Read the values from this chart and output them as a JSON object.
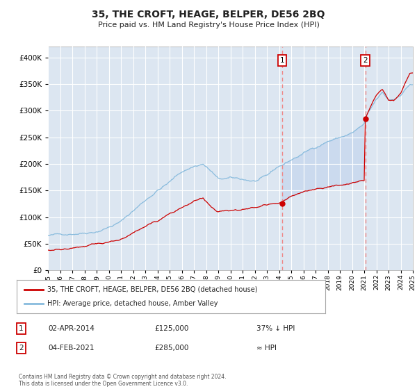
{
  "title": "35, THE CROFT, HEAGE, BELPER, DE56 2BQ",
  "subtitle": "Price paid vs. HM Land Registry's House Price Index (HPI)",
  "legend_line1": "35, THE CROFT, HEAGE, BELPER, DE56 2BQ (detached house)",
  "legend_line2": "HPI: Average price, detached house, Amber Valley",
  "sale1_date": "02-APR-2014",
  "sale1_price": 125000,
  "sale1_note": "37% ↓ HPI",
  "sale2_date": "04-FEB-2021",
  "sale2_price": 285000,
  "sale2_note": "≈ HPI",
  "sale1_year": 2014.25,
  "sale2_year": 2021.09,
  "footer": "Contains HM Land Registry data © Crown copyright and database right 2024.\nThis data is licensed under the Open Government Licence v3.0.",
  "background_color": "#ffffff",
  "plot_bg_color": "#dce6f1",
  "grid_color": "#ffffff",
  "hpi_color": "#88bbdd",
  "price_color": "#cc0000",
  "vline_color": "#ee8888",
  "fill_color": "#c8d8ee",
  "ylim": [
    0,
    420000
  ],
  "yticks": [
    0,
    50000,
    100000,
    150000,
    200000,
    250000,
    300000,
    350000,
    400000
  ],
  "hpi_anchors_x": [
    1995.0,
    1996.0,
    1997.0,
    1998.0,
    1999.0,
    2000.0,
    2001.0,
    2002.0,
    2003.0,
    2004.0,
    2005.0,
    2006.0,
    2007.0,
    2007.75,
    2008.5,
    2009.0,
    2010.0,
    2011.0,
    2012.0,
    2013.0,
    2014.0,
    2014.25,
    2015.0,
    2016.0,
    2017.0,
    2018.0,
    2019.0,
    2020.0,
    2021.0,
    2021.09,
    2022.0,
    2022.5,
    2023.0,
    2023.5,
    2024.0,
    2024.75
  ],
  "hpi_anchors_y": [
    65000,
    66000,
    70000,
    74000,
    79000,
    88000,
    98000,
    118000,
    138000,
    158000,
    173000,
    192000,
    203000,
    208000,
    192000,
    178000,
    178000,
    175000,
    172000,
    178000,
    196000,
    198000,
    208000,
    220000,
    232000,
    245000,
    252000,
    260000,
    275000,
    285000,
    318000,
    330000,
    316000,
    318000,
    328000,
    348000
  ],
  "price_anchors_x": [
    1995.0,
    1996.0,
    1997.0,
    1998.0,
    1999.0,
    2000.0,
    2001.0,
    2002.0,
    2003.0,
    2004.0,
    2005.0,
    2006.0,
    2007.0,
    2007.75,
    2008.5,
    2009.0,
    2010.0,
    2011.0,
    2012.0,
    2013.0,
    2014.0,
    2014.25,
    2015.0,
    2016.0,
    2017.0,
    2018.0,
    2019.0,
    2020.0,
    2021.0,
    2021.09,
    2022.0,
    2022.5,
    2023.0,
    2023.5,
    2024.0,
    2024.75
  ],
  "price_anchors_y": [
    38000,
    38500,
    41000,
    43000,
    46000,
    50000,
    56000,
    67000,
    80000,
    92000,
    108000,
    118000,
    132000,
    136000,
    118000,
    108000,
    108000,
    110000,
    114000,
    118000,
    123000,
    125000,
    133000,
    141000,
    148000,
    153000,
    158000,
    163000,
    168000,
    285000,
    330000,
    340000,
    318000,
    320000,
    330000,
    368000
  ]
}
